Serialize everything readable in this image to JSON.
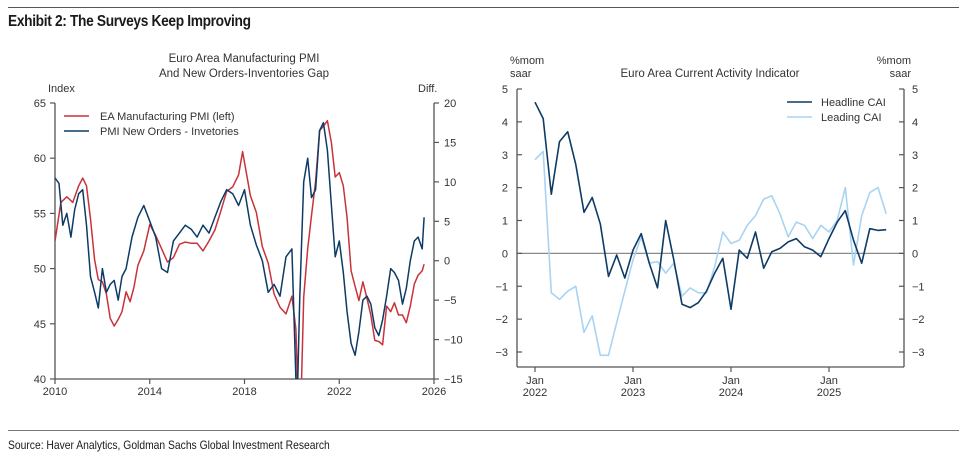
{
  "page": {
    "exhibit_title": "Exhibit 2: The Surveys Keep Improving",
    "source": "Source: Haver Analytics, Goldman Sachs Global Investment Research"
  },
  "chart_data": [
    {
      "type": "line",
      "title": "Euro Area Manufacturing PMI And New Orders-Inventories Gap",
      "title_lines": [
        "Euro Area Manufacturing PMI",
        "And New Orders-Inventories Gap"
      ],
      "ylabel_left": "Index",
      "ylabel_right": "Diff.",
      "xlim": [
        2010,
        2026
      ],
      "ylim_left": [
        40,
        65
      ],
      "ylim_right": [
        -15,
        20
      ],
      "x_ticks": [
        2010,
        2014,
        2018,
        2022,
        2026
      ],
      "x_tick_labels": [
        "2010",
        "2014",
        "2018",
        "2022",
        "2026"
      ],
      "y_ticks_left": [
        40,
        45,
        50,
        55,
        60,
        65
      ],
      "y_tick_labels_left": [
        "40",
        "45",
        "50",
        "55",
        "60",
        "65"
      ],
      "y_ticks_right": [
        -15,
        -10,
        -5,
        0,
        5,
        10,
        15,
        20
      ],
      "y_tick_labels_right": [
        "−15",
        "−10",
        "−5",
        "0",
        "5",
        "10",
        "15",
        "20"
      ],
      "legend_position": "top-left",
      "grid": false,
      "series": [
        {
          "name": "EA Manufacturing PMI (left)",
          "axis": "left",
          "color": "#c8333b",
          "x": [
            2010.0,
            2010.25,
            2010.5,
            2010.75,
            2011.0,
            2011.17,
            2011.33,
            2011.5,
            2011.67,
            2011.83,
            2012.0,
            2012.17,
            2012.33,
            2012.5,
            2012.67,
            2012.83,
            2013.0,
            2013.17,
            2013.33,
            2013.5,
            2013.75,
            2014.0,
            2014.25,
            2014.5,
            2014.75,
            2015.0,
            2015.25,
            2015.5,
            2015.75,
            2016.0,
            2016.25,
            2016.5,
            2016.75,
            2017.0,
            2017.25,
            2017.5,
            2017.75,
            2017.92,
            2018.25,
            2018.5,
            2018.75,
            2019.0,
            2019.25,
            2019.5,
            2019.75,
            2020.0,
            2020.17,
            2020.33,
            2020.5,
            2020.67,
            2020.83,
            2021.0,
            2021.17,
            2021.33,
            2021.5,
            2021.67,
            2021.83,
            2022.0,
            2022.17,
            2022.33,
            2022.5,
            2022.67,
            2022.83,
            2023.0,
            2023.17,
            2023.33,
            2023.5,
            2023.67,
            2023.83,
            2024.0,
            2024.17,
            2024.33,
            2024.5,
            2024.67,
            2024.83,
            2025.0,
            2025.17,
            2025.33,
            2025.5,
            2025.58
          ],
          "values": [
            52.5,
            56.0,
            56.5,
            56.0,
            57.5,
            58.2,
            57.5,
            54.5,
            50.8,
            49.0,
            48.8,
            47.7,
            45.5,
            44.8,
            45.4,
            46.1,
            47.9,
            47.0,
            48.3,
            50.3,
            51.6,
            54.0,
            53.0,
            51.8,
            50.6,
            51.0,
            52.2,
            52.4,
            52.3,
            52.3,
            51.6,
            52.5,
            53.5,
            55.2,
            57.0,
            57.4,
            58.5,
            60.6,
            56.6,
            55.1,
            52.0,
            50.5,
            47.7,
            46.5,
            45.9,
            47.5,
            44.5,
            33.4,
            47.4,
            51.8,
            54.8,
            57.9,
            62.5,
            62.9,
            63.4,
            61.4,
            58.3,
            58.7,
            57.5,
            54.6,
            49.8,
            48.4,
            47.1,
            48.8,
            47.3,
            45.8,
            43.5,
            43.4,
            43.1,
            46.6,
            46.1,
            46.9,
            45.8,
            45.8,
            45.1,
            46.6,
            48.6,
            49.4,
            49.8,
            50.4
          ]
        },
        {
          "name": "PMI New Orders - Invetories",
          "axis": "right",
          "color": "#0d3b66",
          "x": [
            2010.0,
            2010.17,
            2010.33,
            2010.5,
            2010.67,
            2010.83,
            2011.0,
            2011.17,
            2011.33,
            2011.5,
            2011.67,
            2011.83,
            2012.0,
            2012.17,
            2012.33,
            2012.5,
            2012.67,
            2012.83,
            2013.0,
            2013.25,
            2013.5,
            2013.75,
            2014.0,
            2014.25,
            2014.5,
            2014.75,
            2015.0,
            2015.25,
            2015.5,
            2015.75,
            2016.0,
            2016.25,
            2016.5,
            2016.75,
            2017.0,
            2017.25,
            2017.5,
            2017.75,
            2018.0,
            2018.25,
            2018.5,
            2018.75,
            2019.0,
            2019.25,
            2019.5,
            2019.75,
            2020.0,
            2020.17,
            2020.25,
            2020.33,
            2020.42,
            2020.5,
            2020.67,
            2020.83,
            2021.0,
            2021.17,
            2021.33,
            2021.5,
            2021.67,
            2021.83,
            2022.0,
            2022.17,
            2022.33,
            2022.5,
            2022.67,
            2022.83,
            2023.0,
            2023.17,
            2023.33,
            2023.5,
            2023.67,
            2023.83,
            2024.0,
            2024.17,
            2024.33,
            2024.5,
            2024.67,
            2024.83,
            2025.0,
            2025.17,
            2025.33,
            2025.5,
            2025.58
          ],
          "values": [
            10.5,
            9.8,
            4.5,
            6.0,
            3.0,
            6.5,
            8.5,
            9.0,
            4.5,
            -2.0,
            -4.0,
            -6.0,
            -1.0,
            -4.0,
            -3.0,
            -2.5,
            -5.0,
            -2.0,
            -1.0,
            3.0,
            5.5,
            7.0,
            5.0,
            3.0,
            -1.0,
            -1.5,
            2.5,
            3.5,
            4.5,
            4.0,
            3.0,
            4.5,
            3.5,
            5.5,
            7.5,
            9.0,
            8.5,
            7.0,
            9.0,
            4.5,
            2.0,
            0.0,
            -4.0,
            -3.0,
            -4.5,
            0.5,
            1.5,
            -15.0,
            -15.0,
            -5.0,
            3.0,
            10.0,
            13.0,
            8.0,
            9.0,
            16.5,
            17.5,
            14.0,
            7.0,
            0.5,
            2.5,
            -1.5,
            -6.5,
            -10.5,
            -12.0,
            -9.0,
            -5.0,
            -4.5,
            -5.5,
            -8.5,
            -9.5,
            -7.5,
            -4.5,
            -1.0,
            -1.5,
            -2.5,
            -5.5,
            -3.5,
            0.0,
            2.5,
            3.0,
            1.5,
            5.5
          ]
        }
      ]
    },
    {
      "type": "line",
      "title": "Euro Area Current Activity Indicator",
      "ylabel_left": "%mom saar",
      "ylabel_right": "%mom saar",
      "ylabel_lines": [
        "%mom",
        "saar"
      ],
      "xlim_months_from_jan2022": [
        -2,
        45.5
      ],
      "ylim": [
        -3.5,
        5
      ],
      "x_ticks": [
        "Jan 2022",
        "Jan 2023",
        "Jan 2024",
        "Jan 2025"
      ],
      "x_tick_labels": [
        [
          "Jan",
          "2022"
        ],
        [
          "Jan",
          "2023"
        ],
        [
          "Jan",
          "2024"
        ],
        [
          "Jan",
          "2025"
        ]
      ],
      "y_ticks": [
        -3,
        -2,
        -1,
        0,
        1,
        2,
        3,
        4,
        5
      ],
      "y_tick_labels": [
        "−3",
        "−2",
        "−1",
        "0",
        "1",
        "2",
        "3",
        "4",
        "5"
      ],
      "zero_line": true,
      "legend_position": "top-right",
      "grid": false,
      "series": [
        {
          "name": "Headline CAI",
          "color": "#0d3b66",
          "start": "Jan 2022",
          "values": [
            4.6,
            4.1,
            1.8,
            3.4,
            3.7,
            2.7,
            1.25,
            1.7,
            0.9,
            -0.7,
            -0.05,
            -0.75,
            0.1,
            0.6,
            -0.3,
            -1.05,
            1.0,
            -0.2,
            -1.55,
            -1.65,
            -1.5,
            -1.15,
            -0.6,
            -0.15,
            -1.7,
            0.1,
            -0.15,
            0.65,
            -0.45,
            0.05,
            0.15,
            0.35,
            0.45,
            0.2,
            0.1,
            -0.1,
            0.45,
            0.95,
            1.3,
            0.4,
            -0.3,
            0.75,
            0.7,
            0.72
          ]
        },
        {
          "name": "Leading CAI",
          "color": "#a9d3f2",
          "start": "Jan 2022",
          "values": [
            2.85,
            3.1,
            -1.2,
            -1.4,
            -1.15,
            -1.0,
            -2.4,
            -1.9,
            -3.1,
            -3.1,
            -2.1,
            -1.15,
            -0.2,
            0.5,
            -0.3,
            -0.25,
            -0.6,
            -0.3,
            -1.3,
            -1.05,
            -1.2,
            -1.2,
            -0.4,
            0.65,
            0.3,
            0.4,
            0.85,
            1.15,
            1.65,
            1.75,
            1.2,
            0.5,
            0.95,
            0.85,
            0.45,
            0.85,
            0.65,
            1.0,
            2.0,
            -0.35,
            1.15,
            1.85,
            2.0,
            1.2
          ]
        }
      ]
    }
  ]
}
